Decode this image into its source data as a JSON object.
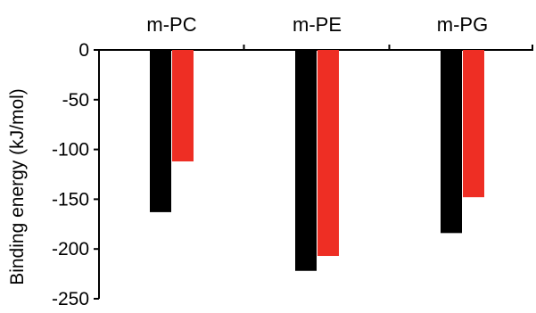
{
  "chart_data": {
    "type": "bar",
    "categories": [
      "m-PC",
      "m-PE",
      "m-PG"
    ],
    "series": [
      {
        "values": [
          -163,
          -222,
          -184
        ],
        "color": "#000000"
      },
      {
        "values": [
          -112,
          -207,
          -148
        ],
        "color": "#ee2e24"
      }
    ],
    "title": "",
    "xlabel": "",
    "ylabel": "Binding energy (kJ/mol)",
    "ylim": [
      -250,
      0
    ],
    "yticks": [
      0,
      -50,
      -100,
      -150,
      -200,
      -250
    ],
    "ytick_labels": [
      "0",
      "-50",
      "-100",
      "-150",
      "-200",
      "-250"
    ],
    "category_label_position": "top",
    "grid": false,
    "legend": "none"
  }
}
